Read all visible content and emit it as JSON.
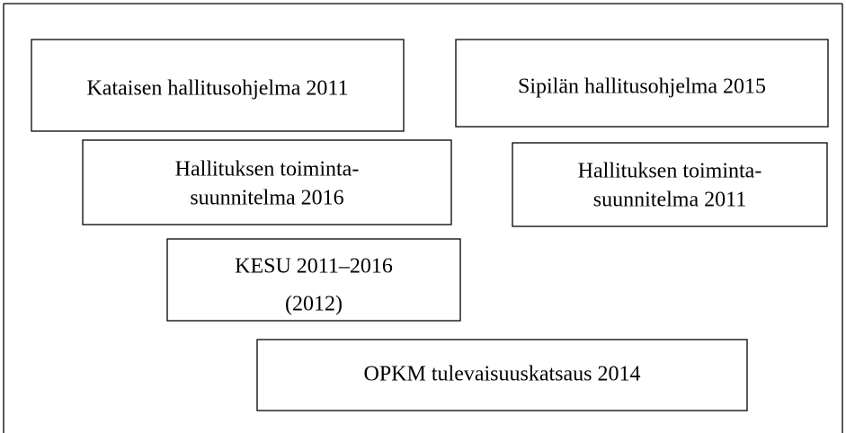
{
  "nodes": [
    {
      "lines": [
        "Kataisen hallitusohjelma 2011"
      ]
    },
    {
      "lines": [
        "Sipilän hallitusohjelma 2015"
      ]
    },
    {
      "lines": [
        "Hallituksen toiminta-",
        "suunnitelma 2016"
      ]
    },
    {
      "lines": [
        "Hallituksen toiminta-",
        "suunnitelma 2011"
      ]
    },
    {
      "lines": [
        "KESU 2011–2016",
        "(2012)"
      ]
    },
    {
      "lines": [
        "OPKM tulevaisuuskatsaus 2014"
      ]
    }
  ]
}
